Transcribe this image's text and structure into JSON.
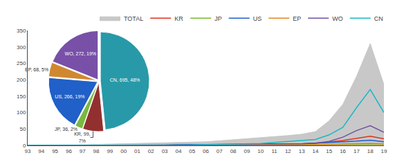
{
  "chart_data": [
    {
      "type": "line",
      "categories": [
        "93",
        "94",
        "95",
        "96",
        "97",
        "98",
        "99",
        "00",
        "01",
        "02",
        "03",
        "04",
        "05",
        "06",
        "07",
        "08",
        "09",
        "10",
        "11",
        "12",
        "13",
        "14",
        "15",
        "16",
        "17",
        "18",
        "19"
      ],
      "series": [
        {
          "name": "TOTAL",
          "type": "area",
          "color": "#c8c8c8",
          "values": [
            1,
            1,
            1,
            2,
            2,
            3,
            4,
            4,
            5,
            6,
            7,
            8,
            9,
            11,
            14,
            17,
            20,
            24,
            26,
            30,
            34,
            42,
            75,
            125,
            210,
            310,
            185
          ]
        },
        {
          "name": "KR",
          "color": "#e03020",
          "values": [
            0,
            0,
            0,
            0,
            0,
            1,
            1,
            1,
            1,
            1,
            1,
            2,
            2,
            2,
            3,
            3,
            4,
            4,
            5,
            5,
            5,
            7,
            10,
            15,
            22,
            28,
            20
          ]
        },
        {
          "name": "JP",
          "color": "#78b828",
          "values": [
            0,
            0,
            0,
            0,
            0,
            0,
            0,
            0,
            0,
            0,
            0,
            0,
            1,
            1,
            1,
            1,
            1,
            1,
            1,
            1,
            1,
            2,
            2,
            2,
            3,
            4,
            3
          ]
        },
        {
          "name": "US",
          "color": "#2060c8",
          "values": [
            0,
            0,
            0,
            1,
            1,
            1,
            1,
            1,
            1,
            1,
            1,
            2,
            2,
            2,
            3,
            3,
            4,
            4,
            4,
            4,
            5,
            7,
            9,
            10,
            13,
            16,
            11
          ]
        },
        {
          "name": "EP",
          "color": "#e08820",
          "values": [
            0,
            0,
            0,
            0,
            0,
            0,
            0,
            0,
            0,
            0,
            0,
            0,
            1,
            1,
            1,
            1,
            1,
            2,
            2,
            2,
            2,
            3,
            3,
            4,
            5,
            6,
            4
          ]
        },
        {
          "name": "WO",
          "color": "#7050a0",
          "values": [
            0,
            0,
            0,
            0,
            0,
            0,
            0,
            0,
            1,
            1,
            1,
            1,
            1,
            2,
            2,
            2,
            3,
            4,
            4,
            5,
            5,
            7,
            12,
            25,
            45,
            60,
            40
          ]
        },
        {
          "name": "CN",
          "color": "#18b8c8",
          "values": [
            0,
            0,
            0,
            0,
            0,
            0,
            0,
            0,
            0,
            1,
            1,
            1,
            1,
            2,
            3,
            4,
            5,
            6,
            9,
            12,
            15,
            18,
            32,
            55,
            115,
            170,
            100
          ]
        }
      ],
      "ylim": [
        0,
        350
      ],
      "yticks": [
        0,
        50,
        100,
        150,
        200,
        250,
        300,
        350
      ],
      "grid": false,
      "legend": "top"
    },
    {
      "type": "pie",
      "values": [
        695,
        99,
        36,
        266,
        68,
        272
      ],
      "value_labels": [
        "CN, 695, 48%",
        "KR, 99,\n7%",
        "JP, 36, 2%",
        "US, 266, 19%",
        "EP, 68, 5%",
        "WO, 272, 19%"
      ],
      "colors": [
        "#2899a8",
        "#923030",
        "#7ab840",
        "#2060c8",
        "#d08830",
        "#7850a8"
      ]
    }
  ]
}
